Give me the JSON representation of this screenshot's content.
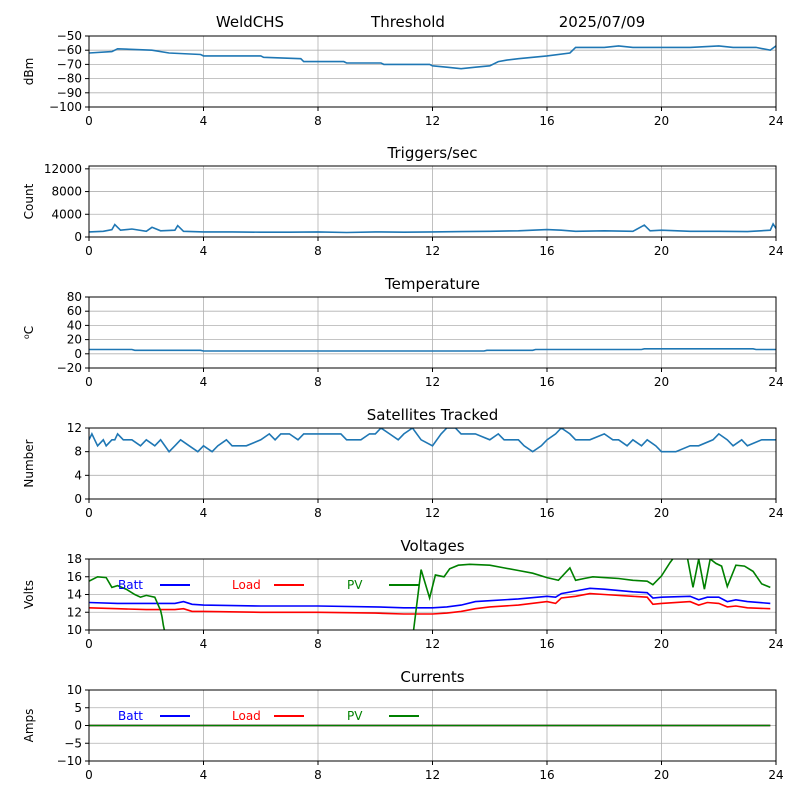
{
  "header": {
    "station": "WeldCHS",
    "mode": "Threshold",
    "date": "2025/07/09"
  },
  "colors": {
    "default_series": "#1f77b4",
    "batt": "#0000ff",
    "load": "#ff0000",
    "pv": "#008000",
    "grid": "#b0b0b0",
    "axis": "#000000"
  },
  "chart_data": [
    {
      "id": "signal",
      "type": "line",
      "title": "",
      "xlabel": "",
      "ylabel": "dBm",
      "xlim": [
        0,
        24
      ],
      "ylim": [
        -100,
        -50
      ],
      "xticks": [
        0,
        4,
        8,
        12,
        16,
        20,
        24
      ],
      "yticks": [
        -100,
        -90,
        -80,
        -70,
        -60,
        -50
      ],
      "grid": true,
      "legend": [],
      "series": [
        {
          "color": "#1f77b4",
          "x": [
            0,
            0.8,
            1.0,
            2.2,
            2.8,
            3.9,
            4.0,
            6.0,
            6.1,
            7.4,
            7.5,
            8.9,
            9.0,
            10.2,
            10.3,
            11.9,
            12.0,
            12.5,
            13.0,
            13.5,
            14.0,
            14.3,
            14.6,
            15.0,
            16.0,
            16.8,
            17.0,
            18.0,
            18.5,
            19.0,
            19.5,
            20.0,
            21.0,
            22.0,
            22.5,
            23.3,
            23.8,
            24.0
          ],
          "y": [
            -62,
            -61,
            -59,
            -60,
            -62,
            -63,
            -64,
            -64,
            -65,
            -66,
            -68,
            -68,
            -69,
            -69,
            -70,
            -70,
            -71,
            -72,
            -73,
            -72,
            -71,
            -68,
            -67,
            -66,
            -64,
            -62,
            -58,
            -58,
            -57,
            -58,
            -58,
            -58,
            -58,
            -57,
            -58,
            -58,
            -60,
            -57
          ]
        }
      ]
    },
    {
      "id": "triggers",
      "type": "line",
      "title": "Triggers/sec",
      "xlabel": "",
      "ylabel": "Count",
      "xlim": [
        0,
        24
      ],
      "ylim": [
        0,
        12500
      ],
      "xticks": [
        0,
        4,
        8,
        12,
        16,
        20,
        24
      ],
      "yticks": [
        0,
        4000,
        8000,
        12000
      ],
      "grid": true,
      "legend": [],
      "series": [
        {
          "color": "#1f77b4",
          "x": [
            0,
            0.5,
            0.8,
            0.9,
            1.1,
            1.5,
            2.0,
            2.2,
            2.5,
            3.0,
            3.1,
            3.3,
            4.0,
            5.0,
            6.0,
            7.0,
            8.0,
            9.0,
            10.0,
            11.0,
            12.0,
            13.0,
            14.0,
            15.0,
            16.0,
            16.5,
            17.0,
            18.0,
            19.0,
            19.4,
            19.6,
            20.0,
            21.0,
            22.0,
            23.0,
            23.8,
            23.9,
            24.0
          ],
          "y": [
            900,
            1000,
            1300,
            2200,
            1200,
            1400,
            1000,
            1700,
            1100,
            1200,
            2000,
            1000,
            900,
            900,
            850,
            850,
            900,
            800,
            900,
            850,
            900,
            950,
            1000,
            1100,
            1300,
            1200,
            1000,
            1100,
            1000,
            2100,
            1100,
            1200,
            1000,
            1000,
            950,
            1200,
            2300,
            1500
          ]
        }
      ]
    },
    {
      "id": "temperature",
      "type": "line",
      "title": "Temperature",
      "xlabel": "",
      "ylabel": "⁰C",
      "xlim": [
        0,
        24
      ],
      "ylim": [
        -20,
        80
      ],
      "xticks": [
        0,
        4,
        8,
        12,
        16,
        20,
        24
      ],
      "yticks": [
        -20,
        0,
        20,
        40,
        60,
        80
      ],
      "grid": true,
      "legend": [],
      "series": [
        {
          "color": "#1f77b4",
          "x": [
            0,
            1.5,
            1.6,
            3.9,
            4.0,
            13.8,
            13.9,
            15.5,
            15.6,
            19.3,
            19.4,
            23.2,
            23.3,
            24.0
          ],
          "y": [
            6,
            6,
            5,
            5,
            4,
            4,
            5,
            5,
            6,
            6,
            7,
            7,
            6,
            6
          ]
        }
      ]
    },
    {
      "id": "satellites",
      "type": "line",
      "title": "Satellites Tracked",
      "xlabel": "",
      "ylabel": "Number",
      "xlim": [
        0,
        24
      ],
      "ylim": [
        0,
        12
      ],
      "xticks": [
        0,
        4,
        8,
        12,
        16,
        20,
        24
      ],
      "yticks": [
        0,
        4,
        8,
        12
      ],
      "grid": true,
      "legend": [],
      "series": [
        {
          "color": "#1f77b4",
          "x": [
            0,
            0.1,
            0.2,
            0.3,
            0.5,
            0.6,
            0.8,
            0.9,
            1.0,
            1.2,
            1.5,
            1.8,
            2.0,
            2.3,
            2.5,
            2.8,
            3.0,
            3.2,
            3.5,
            3.8,
            4.0,
            4.3,
            4.5,
            4.8,
            5.0,
            5.5,
            6.0,
            6.3,
            6.5,
            6.7,
            7.0,
            7.3,
            7.5,
            8.0,
            8.3,
            8.8,
            9.0,
            9.5,
            9.8,
            10.0,
            10.2,
            10.5,
            10.8,
            11.0,
            11.3,
            11.6,
            12.0,
            12.3,
            12.5,
            12.8,
            13.0,
            13.5,
            14.0,
            14.3,
            14.5,
            15.0,
            15.2,
            15.5,
            15.8,
            16.0,
            16.3,
            16.5,
            16.8,
            17.0,
            17.5,
            18.0,
            18.3,
            18.5,
            18.8,
            19.0,
            19.3,
            19.5,
            19.8,
            20.0,
            20.5,
            21.0,
            21.3,
            21.8,
            22.0,
            22.3,
            22.5,
            22.8,
            23.0,
            23.5,
            23.8,
            24.0
          ],
          "y": [
            10,
            11,
            10,
            9,
            10,
            9,
            10,
            10,
            11,
            10,
            10,
            9,
            10,
            9,
            10,
            8,
            9,
            10,
            9,
            8,
            9,
            8,
            9,
            10,
            9,
            9,
            10,
            11,
            10,
            11,
            11,
            10,
            11,
            11,
            11,
            11,
            10,
            10,
            11,
            11,
            12,
            11,
            10,
            11,
            12,
            10,
            9,
            11,
            12,
            12,
            11,
            11,
            10,
            11,
            10,
            10,
            9,
            8,
            9,
            10,
            11,
            12,
            11,
            10,
            10,
            11,
            10,
            10,
            9,
            10,
            9,
            10,
            9,
            8,
            8,
            9,
            9,
            10,
            11,
            10,
            9,
            10,
            9,
            10,
            10,
            10
          ]
        }
      ]
    },
    {
      "id": "voltages",
      "type": "line",
      "title": "Voltages",
      "xlabel": "",
      "ylabel": "Volts",
      "xlim": [
        0,
        24
      ],
      "ylim": [
        10,
        18
      ],
      "xticks": [
        0,
        4,
        8,
        12,
        16,
        20,
        24
      ],
      "yticks": [
        10,
        12,
        14,
        16,
        18
      ],
      "grid": true,
      "legend": [
        "Batt",
        "Load",
        "PV"
      ],
      "series": [
        {
          "name": "Batt",
          "color": "#0000ff",
          "x": [
            0,
            1,
            2,
            3,
            3.3,
            3.6,
            4,
            6,
            8,
            10,
            11,
            12,
            12.5,
            13,
            13.5,
            14,
            15,
            16,
            16.3,
            16.5,
            17,
            17.5,
            18,
            19,
            19.5,
            19.7,
            20,
            21,
            21.3,
            21.6,
            22,
            22.3,
            22.6,
            23,
            23.8
          ],
          "y": [
            13.1,
            13.0,
            13.0,
            13.0,
            13.2,
            12.9,
            12.8,
            12.7,
            12.7,
            12.6,
            12.5,
            12.5,
            12.6,
            12.8,
            13.2,
            13.3,
            13.5,
            13.8,
            13.7,
            14.1,
            14.4,
            14.7,
            14.6,
            14.3,
            14.2,
            13.6,
            13.7,
            13.8,
            13.4,
            13.7,
            13.7,
            13.2,
            13.4,
            13.2,
            13.0
          ]
        },
        {
          "name": "Load",
          "color": "#ff0000",
          "x": [
            0,
            1,
            2,
            3,
            3.3,
            3.6,
            4,
            6,
            8,
            10,
            11,
            12,
            12.5,
            13,
            13.5,
            14,
            15,
            16,
            16.3,
            16.5,
            17,
            17.5,
            18,
            19,
            19.5,
            19.7,
            20,
            21,
            21.3,
            21.6,
            22,
            22.3,
            22.6,
            23,
            23.8
          ],
          "y": [
            12.5,
            12.4,
            12.3,
            12.3,
            12.4,
            12.1,
            12.1,
            12.0,
            12.0,
            11.9,
            11.8,
            11.8,
            11.9,
            12.1,
            12.4,
            12.6,
            12.8,
            13.2,
            13.0,
            13.6,
            13.8,
            14.1,
            14.0,
            13.8,
            13.7,
            12.9,
            13.0,
            13.2,
            12.8,
            13.1,
            13.0,
            12.6,
            12.7,
            12.5,
            12.4
          ]
        },
        {
          "name": "PV",
          "color": "#008000",
          "x": [
            0,
            0.3,
            0.6,
            0.8,
            1.0,
            1.3,
            1.6,
            1.8,
            2.0,
            2.3,
            2.5,
            2.55,
            2.6,
            2.7,
            11.3,
            11.6,
            11.9,
            12.1,
            12.4,
            12.6,
            12.9,
            13.3,
            14.0,
            14.5,
            15.0,
            15.5,
            16.0,
            16.4,
            16.8,
            17.0,
            17.3,
            17.6,
            18.0,
            18.5,
            19.0,
            19.5,
            19.7,
            20.0,
            20.3,
            20.6,
            20.9,
            21.1,
            21.3,
            21.5,
            21.7,
            21.9,
            22.1,
            22.3,
            22.6,
            22.9,
            23.2,
            23.5,
            23.8
          ],
          "y": [
            15.5,
            16.0,
            15.9,
            14.8,
            15.0,
            14.6,
            14.0,
            13.7,
            13.9,
            13.7,
            12.2,
            11.5,
            10.5,
            9.0,
            9.0,
            16.8,
            13.6,
            16.2,
            16.0,
            16.9,
            17.3,
            17.4,
            17.3,
            17.0,
            16.7,
            16.4,
            15.9,
            15.6,
            17.0,
            15.6,
            15.8,
            16.0,
            15.9,
            15.8,
            15.6,
            15.5,
            15.1,
            16.1,
            17.6,
            18.9,
            18.2,
            14.8,
            18.0,
            14.6,
            18.0,
            17.5,
            17.2,
            14.9,
            17.3,
            17.2,
            16.6,
            15.2,
            14.8
          ]
        }
      ]
    },
    {
      "id": "currents",
      "type": "line",
      "title": "Currents",
      "xlabel": "",
      "ylabel": "Amps",
      "xlim": [
        0,
        24
      ],
      "ylim": [
        -10,
        10
      ],
      "xticks": [
        0,
        4,
        8,
        12,
        16,
        20,
        24
      ],
      "yticks": [
        -10,
        -5,
        0,
        5,
        10
      ],
      "grid": true,
      "legend": [
        "Batt",
        "Load",
        "PV"
      ],
      "series": [
        {
          "name": "Batt",
          "color": "#0000ff",
          "x": [
            0,
            23.8
          ],
          "y": [
            0,
            0
          ]
        },
        {
          "name": "Load",
          "color": "#ff0000",
          "x": [
            0,
            23.8
          ],
          "y": [
            0,
            0
          ]
        },
        {
          "name": "PV",
          "color": "#008000",
          "x": [
            0,
            23.8
          ],
          "y": [
            0,
            0
          ]
        }
      ]
    }
  ]
}
